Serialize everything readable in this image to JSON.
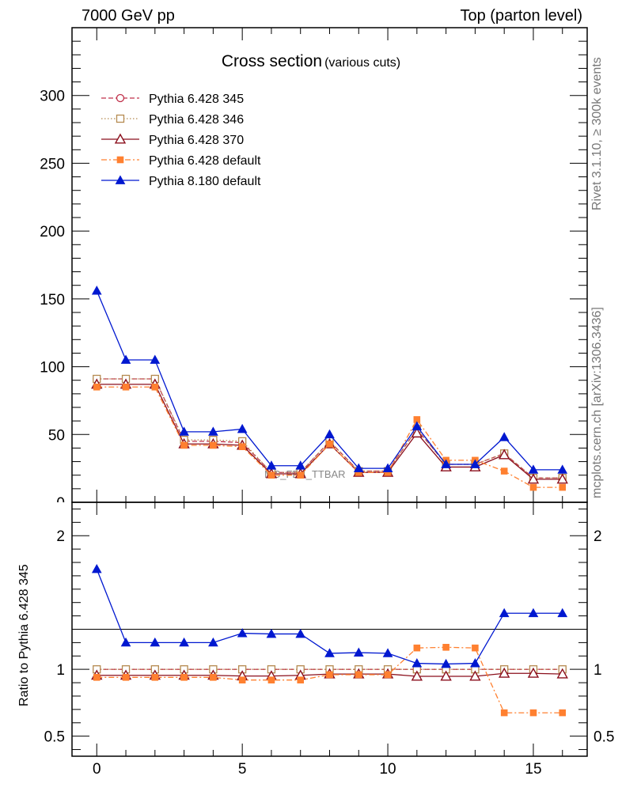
{
  "header": {
    "left": "7000 GeV pp",
    "right": "Top (parton level)"
  },
  "side_labels": {
    "rivet": "Rivet 3.1.10, ≥ 300k events",
    "mcplots": "mcplots.cern.ch [arXiv:1306.3436]"
  },
  "watermark": "MC_FBA_TTBAR",
  "chart_data": [
    {
      "type": "line",
      "title": "Cross section",
      "subtitle": "(various cuts)",
      "xlabel": "",
      "ylabel": "",
      "xlim": [
        -0.85,
        16.85
      ],
      "ylim": [
        0,
        350
      ],
      "yticks": [
        50,
        100,
        150,
        200,
        250,
        300
      ],
      "xticks": [
        0,
        5,
        10,
        15
      ],
      "legend_position": "top-left",
      "x": [
        0,
        1,
        2,
        3,
        4,
        5,
        6,
        7,
        8,
        9,
        10,
        11,
        12,
        13,
        14,
        15,
        16
      ],
      "series": [
        {
          "name": "Pythia 6.428 345",
          "color": "#c0304a",
          "marker": "circle-open",
          "dash": "dashed",
          "values": [
            91,
            91,
            91,
            45,
            45,
            44,
            22,
            22,
            45,
            23,
            23,
            54,
            28,
            28,
            36,
            18,
            18
          ]
        },
        {
          "name": "Pythia 6.428 346",
          "color": "#b58a50",
          "marker": "square-open",
          "dash": "dotted",
          "values": [
            91,
            91,
            91,
            46,
            46,
            45,
            22,
            22,
            45,
            23,
            23,
            54,
            28,
            28,
            36,
            18,
            18
          ]
        },
        {
          "name": "Pythia 6.428 370",
          "color": "#8b0f1c",
          "marker": "triangle-open",
          "dash": "solid",
          "values": [
            87,
            87,
            87,
            43,
            43,
            42,
            21,
            21,
            43,
            22,
            22,
            51,
            26,
            26,
            35,
            17,
            17
          ]
        },
        {
          "name": "Pythia 6.428 default",
          "color": "#ff8030",
          "marker": "square-filled",
          "dash": "dashdot",
          "values": [
            85,
            85,
            85,
            42,
            42,
            41,
            20,
            20,
            43,
            22,
            22,
            61,
            31,
            31,
            23,
            11,
            11
          ]
        },
        {
          "name": "Pythia 8.180 default",
          "color": "#0018d0",
          "marker": "triangle-filled",
          "dash": "solid",
          "values": [
            156,
            105,
            105,
            52,
            52,
            54,
            27,
            27,
            50,
            25,
            25,
            56,
            28,
            28,
            48,
            24,
            24
          ]
        }
      ]
    },
    {
      "type": "line",
      "title": "",
      "xlabel": "",
      "ylabel": "Ratio to Pythia 6.428 345",
      "xlim": [
        -0.85,
        16.85
      ],
      "ylim": [
        0.35,
        2.25
      ],
      "yticks": [
        0.5,
        1,
        2
      ],
      "ytick_labels": [
        "0.5",
        "1",
        "2"
      ],
      "xticks": [
        0,
        5,
        10,
        15
      ],
      "x": [
        0,
        1,
        2,
        3,
        4,
        5,
        6,
        7,
        8,
        9,
        10,
        11,
        12,
        13,
        14,
        15,
        16
      ],
      "series": [
        {
          "name": "Pythia 6.428 345",
          "color": "#c0304a",
          "marker": "circle-open",
          "dash": "dashed",
          "values": [
            1,
            1,
            1,
            1,
            1,
            1,
            1,
            1,
            1,
            1,
            1,
            1,
            1,
            1,
            1,
            1,
            1
          ]
        },
        {
          "name": "Pythia 6.428 346",
          "color": "#b58a50",
          "marker": "square-open",
          "dash": "dotted",
          "values": [
            1,
            1,
            1,
            1,
            1,
            1,
            1,
            1,
            1,
            1,
            1,
            1,
            1,
            1,
            1,
            1,
            1
          ]
        },
        {
          "name": "Pythia 6.428 370",
          "color": "#8b0f1c",
          "marker": "triangle-open",
          "dash": "solid",
          "values": [
            0.955,
            0.955,
            0.955,
            0.955,
            0.955,
            0.95,
            0.95,
            0.955,
            0.965,
            0.965,
            0.965,
            0.948,
            0.948,
            0.948,
            0.97,
            0.97,
            0.965
          ]
        },
        {
          "name": "Pythia 6.428 default",
          "color": "#ff8030",
          "marker": "square-filled",
          "dash": "dashdot",
          "values": [
            0.94,
            0.94,
            0.94,
            0.94,
            0.94,
            0.92,
            0.92,
            0.92,
            0.96,
            0.96,
            0.96,
            1.16,
            1.165,
            1.16,
            0.675,
            0.675,
            0.675
          ]
        },
        {
          "name": "Pythia 8.180 default",
          "color": "#0018d0",
          "marker": "triangle-filled",
          "dash": "solid",
          "values": [
            1.75,
            1.2,
            1.2,
            1.2,
            1.2,
            1.27,
            1.265,
            1.265,
            1.12,
            1.125,
            1.12,
            1.045,
            1.04,
            1.045,
            1.42,
            1.42,
            1.42
          ]
        }
      ]
    }
  ]
}
